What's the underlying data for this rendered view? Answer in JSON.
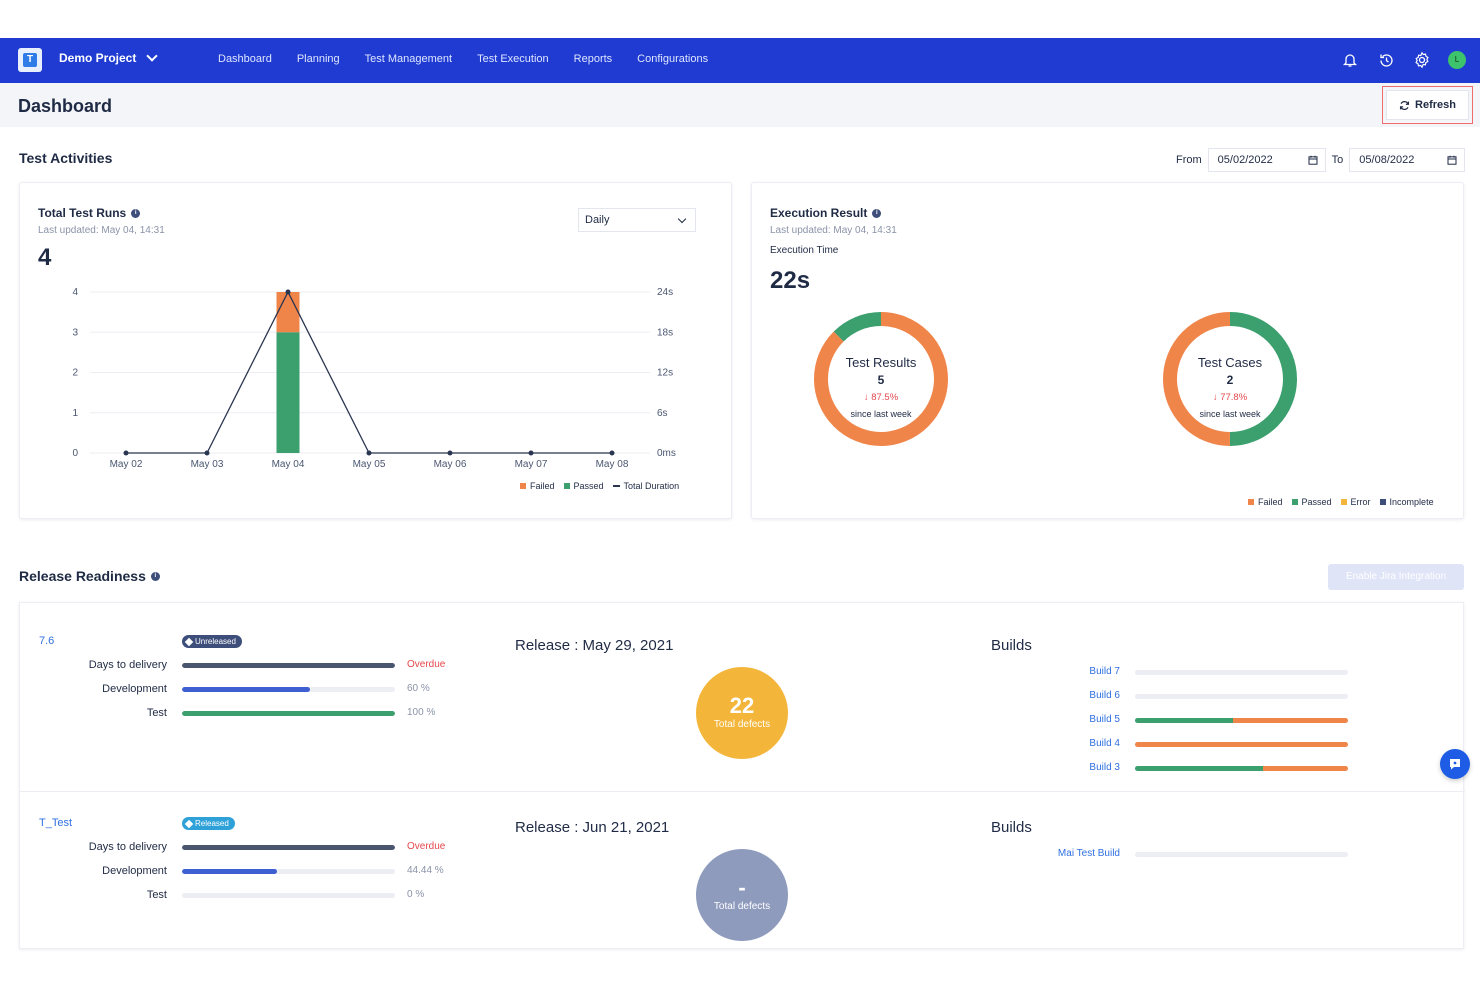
{
  "topbar": {
    "logo_letter": "T",
    "project_name": "Demo Project",
    "nav": [
      "Dashboard",
      "Planning",
      "Test Management",
      "Test Execution",
      "Reports",
      "Configurations"
    ],
    "avatar_initial": "L",
    "brand_color": "#1f3bd1"
  },
  "page": {
    "title": "Dashboard",
    "refresh_label": "Refresh"
  },
  "test_activities": {
    "title": "Test Activities",
    "from_label": "From",
    "from_value": "05/02/2022",
    "to_label": "To",
    "to_value": "05/08/2022"
  },
  "runs_card": {
    "title": "Total Test Runs",
    "updated": "Last updated: May 04, 14:31",
    "total": "4",
    "period": "Daily"
  },
  "exec_card": {
    "title": "Execution Result",
    "updated": "Last updated: May 04, 14:31",
    "exec_time_label": "Execution Time",
    "exec_time": "22s",
    "legend": [
      {
        "label": "Failed",
        "color": "#f0854a"
      },
      {
        "label": "Passed",
        "color": "#3b9f6e"
      },
      {
        "label": "Error",
        "color": "#f3b63a"
      },
      {
        "label": "Incomplete",
        "color": "#3d4e7a"
      }
    ]
  },
  "chart_data": [
    {
      "type": "bar",
      "categories": [
        "May 02",
        "May 03",
        "May 04",
        "May 05",
        "May 06",
        "May 07",
        "May 08"
      ],
      "series": [
        {
          "name": "Failed",
          "values": [
            0,
            0,
            1,
            0,
            0,
            0,
            0
          ],
          "color": "#f0854a"
        },
        {
          "name": "Passed",
          "values": [
            0,
            0,
            3,
            0,
            0,
            0,
            0
          ],
          "color": "#3b9f6e"
        },
        {
          "name": "Total Duration",
          "type": "line",
          "values": [
            0,
            0,
            4,
            0,
            0,
            0,
            0
          ],
          "color": "#2a3550"
        }
      ],
      "y_ticks": [
        "0",
        "1",
        "2",
        "3",
        "4"
      ],
      "y2_ticks": [
        "0ms",
        "6s",
        "12s",
        "18s",
        "24s"
      ],
      "ylim": [
        0,
        4
      ],
      "stacked": true,
      "grid": true,
      "legend": "bottom-right"
    },
    {
      "type": "pie",
      "title": "Test Results",
      "center_value": "5",
      "change": "↓ 87.5%",
      "change_note": "since last week",
      "slices": [
        {
          "name": "Failed",
          "value": 0.875,
          "color": "#f0854a"
        },
        {
          "name": "Passed",
          "value": 0.125,
          "color": "#3b9f6e"
        }
      ]
    },
    {
      "type": "pie",
      "title": "Test Cases",
      "center_value": "2",
      "change": "↓ 77.8%",
      "change_note": "since last week",
      "slices": [
        {
          "name": "Passed",
          "value": 0.5,
          "color": "#3b9f6e"
        },
        {
          "name": "Failed",
          "value": 0.5,
          "color": "#f0854a"
        }
      ]
    }
  ],
  "release_readiness": {
    "title": "Release Readiness",
    "jira_label": "Enable Jira Integration",
    "releases": [
      {
        "name": "7.6",
        "status": "Unreleased",
        "status_color": "#3d4e7a",
        "metrics": [
          {
            "label": "Days to delivery",
            "value": "Overdue",
            "progress": 1.0,
            "color": "#4a5670",
            "value_color": "#e5484d"
          },
          {
            "label": "Development",
            "value": "60 %",
            "progress": 0.6,
            "color": "#3d5fd1",
            "value_color": "#8a93a8"
          },
          {
            "label": "Test",
            "value": "100 %",
            "progress": 1.0,
            "color": "#3b9f6e",
            "value_color": "#8a93a8"
          }
        ],
        "release_date": "Release : May 29, 2021",
        "defects": "22",
        "defects_label": "Total defects",
        "defects_color": "#f3b63a",
        "builds_title": "Builds",
        "builds": [
          {
            "name": "Build 7",
            "passed": 0,
            "failed": 0
          },
          {
            "name": "Build 6",
            "passed": 0,
            "failed": 0
          },
          {
            "name": "Build 5",
            "passed": 0.46,
            "failed": 0.54
          },
          {
            "name": "Build 4",
            "passed": 0,
            "failed": 1.0
          },
          {
            "name": "Build 3",
            "passed": 0.6,
            "failed": 0.4
          }
        ]
      },
      {
        "name": "T_Test",
        "status": "Released",
        "status_color": "#2ea1d8",
        "metrics": [
          {
            "label": "Days to delivery",
            "value": "Overdue",
            "progress": 1.0,
            "color": "#4a5670",
            "value_color": "#e5484d"
          },
          {
            "label": "Development",
            "value": "44.44 %",
            "progress": 0.4444,
            "color": "#3d5fd1",
            "value_color": "#8a93a8"
          },
          {
            "label": "Test",
            "value": "0 %",
            "progress": 0.0,
            "color": "#3b9f6e",
            "value_color": "#8a93a8"
          }
        ],
        "release_date": "Release : Jun 21, 2021",
        "defects": "-",
        "defects_label": "Total defects",
        "defects_color": "#8e9bbd",
        "builds_title": "Builds",
        "builds": [
          {
            "name": "Mai Test Build",
            "passed": 0,
            "failed": 0
          }
        ]
      }
    ]
  }
}
